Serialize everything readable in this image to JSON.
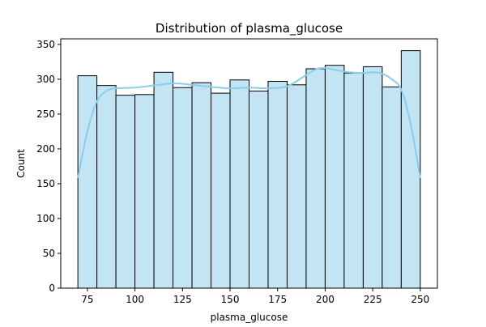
{
  "chart_data": {
    "type": "bar",
    "title": "Distribution of plasma_glucose",
    "xlabel": "plasma_glucose",
    "ylabel": "Count",
    "bin_edges": [
      70,
      80,
      90,
      100,
      110,
      120,
      130,
      140,
      150,
      160,
      170,
      180,
      190,
      200,
      210,
      220,
      230,
      240,
      250
    ],
    "values": [
      305,
      291,
      277,
      278,
      310,
      288,
      295,
      280,
      299,
      283,
      297,
      292,
      315,
      320,
      309,
      318,
      289,
      341
    ],
    "kde": {
      "x": [
        70,
        75,
        80,
        85,
        90,
        100,
        110,
        120,
        130,
        140,
        150,
        160,
        170,
        180,
        190,
        195,
        200,
        210,
        220,
        225,
        230,
        235,
        240,
        245,
        250
      ],
      "y": [
        158,
        225,
        268,
        283,
        287,
        288,
        291,
        294,
        292,
        289,
        287,
        288,
        287,
        290,
        306,
        314,
        316,
        311,
        309,
        310,
        308,
        300,
        285,
        235,
        158
      ]
    },
    "xlim": [
      61,
      259
    ],
    "ylim": [
      0,
      358
    ],
    "xticks": [
      75,
      100,
      125,
      150,
      175,
      200,
      225,
      250
    ],
    "yticks": [
      0,
      50,
      100,
      150,
      200,
      250,
      300,
      350
    ],
    "grid": false,
    "colors": {
      "bar_fill": "#c3e5f3",
      "bar_edge": "#000000",
      "kde_line": "#87ceeb"
    }
  }
}
